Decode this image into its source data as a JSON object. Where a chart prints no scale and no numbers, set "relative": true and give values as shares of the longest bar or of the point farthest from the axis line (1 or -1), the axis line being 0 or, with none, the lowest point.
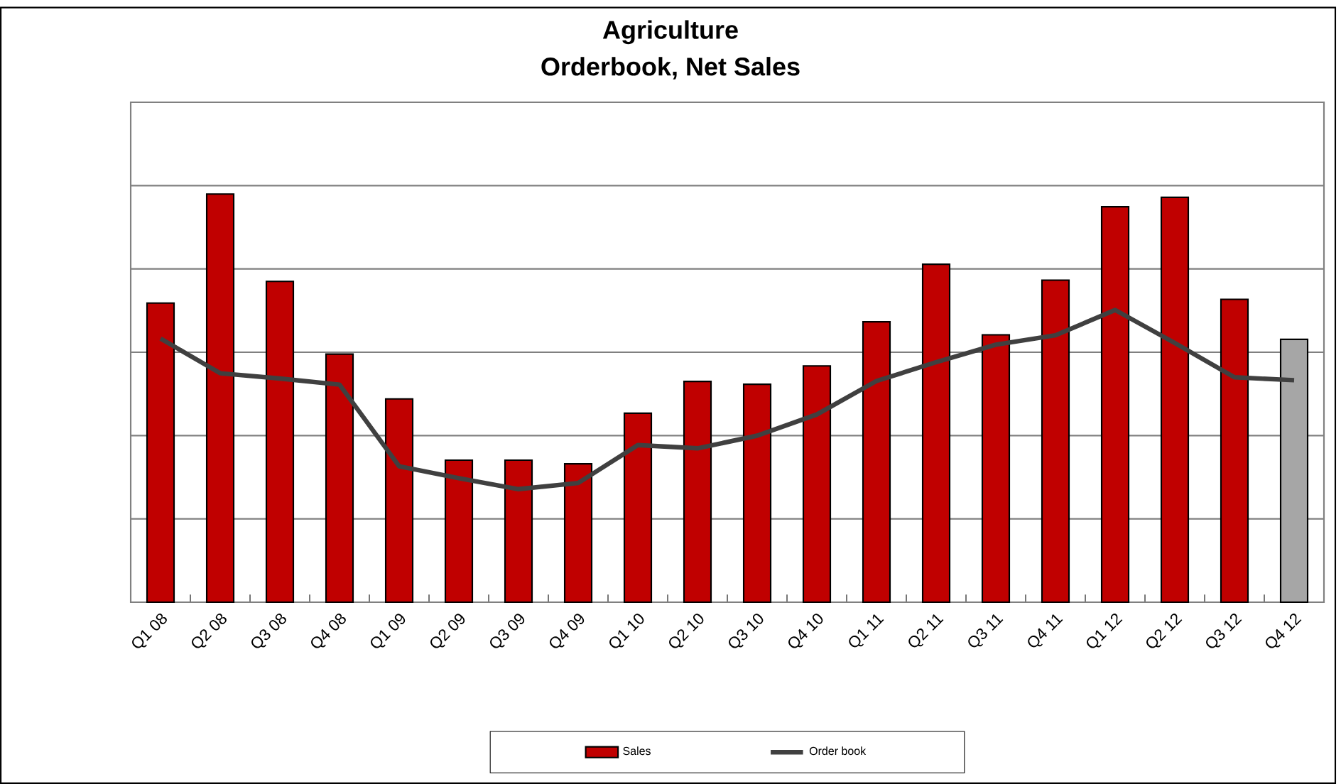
{
  "chart_data": {
    "type": "bar",
    "title": "Agriculture",
    "subtitle": "Orderbook, Net Sales",
    "categories": [
      "Q1 08",
      "Q2 08",
      "Q3 08",
      "Q4 08",
      "Q1 09",
      "Q2 09",
      "Q3 09",
      "Q4 09",
      "Q1 10",
      "Q2 10",
      "Q3 10",
      "Q4 10",
      "Q1 11",
      "Q2 11",
      "Q3 11",
      "Q4 11",
      "Q1 12",
      "Q2 12",
      "Q3 12",
      "Q4 12"
    ],
    "relative": true,
    "grid": "y",
    "legend": "bottom",
    "series": [
      {
        "name": "Sales",
        "color": "#c00000",
        "colors": [
          "#c00000",
          "#c00000",
          "#c00000",
          "#c00000",
          "#c00000",
          "#c00000",
          "#c00000",
          "#c00000",
          "#c00000",
          "#c00000",
          "#c00000",
          "#c00000",
          "#c00000",
          "#c00000",
          "#c00000",
          "#c00000",
          "#c00000",
          "#c00000",
          "#c00000",
          "#a6a6a6"
        ],
        "values": [
          0.733,
          1,
          0.786,
          0.608,
          0.498,
          0.348,
          0.348,
          0.339,
          0.463,
          0.541,
          0.534,
          0.579,
          0.687,
          0.828,
          0.655,
          0.789,
          0.969,
          0.992,
          0.742,
          0.644
        ]
      },
      {
        "name": "Order book",
        "type": "line",
        "color": "#404040",
        "marker": "none",
        "line_style": "solid",
        "values": [
          0.646,
          0.561,
          0.548,
          0.533,
          0.333,
          0.304,
          0.277,
          0.292,
          0.385,
          0.377,
          0.408,
          0.46,
          0.542,
          0.588,
          0.631,
          0.654,
          0.716,
          0.635,
          0.551,
          0.544
        ]
      }
    ]
  }
}
